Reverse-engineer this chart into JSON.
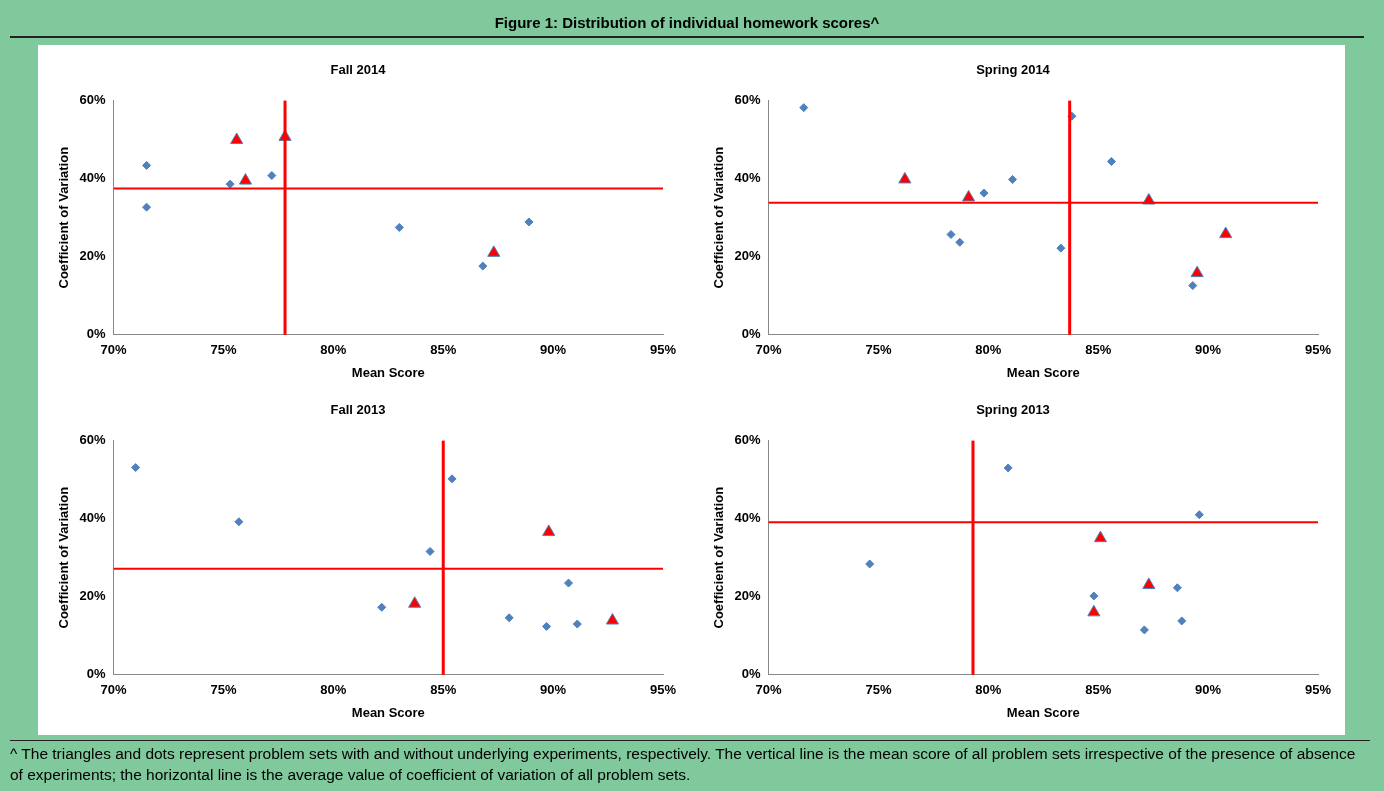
{
  "chart_data": [
    {
      "type": "scatter",
      "title": "Fall 2014",
      "xlabel": "Mean Score",
      "ylabel": "Coefficient of Variation",
      "annotations": [
        "Figure 1: Distribution of individual homework scores^",
        "^ The triangles and dots represent problem sets with and without underlying experiments, respectively. The vertical line is the mean score of all problem sets irrespective of the presence of absence of experiments; the horizontal line is the average value of coefficient of variation of all problem sets."
      ],
      "xlim": [
        70,
        95
      ],
      "ylim": [
        0,
        60
      ],
      "xticks": [
        {
          "value": 70,
          "label": "70%"
        },
        {
          "value": 75,
          "label": "75%"
        },
        {
          "value": 80,
          "label": "80%"
        },
        {
          "value": 85,
          "label": "85%"
        },
        {
          "value": 90,
          "label": "90%"
        },
        {
          "value": 95,
          "label": "95%"
        }
      ],
      "yticks": [
        {
          "value": 0,
          "label": "0%"
        },
        {
          "value": 20,
          "label": "20%"
        },
        {
          "value": 40,
          "label": "40%"
        },
        {
          "value": 60,
          "label": "60%"
        }
      ],
      "grid": false,
      "legend": false,
      "series": [
        {
          "color": "#4f81bd",
          "marker": "diamond",
          "x": [
            71.5,
            71.5,
            75.3,
            77.2,
            83.0,
            86.8,
            88.9
          ],
          "values": [
            43.4,
            32.7,
            38.6,
            40.8,
            27.5,
            17.6,
            28.9
          ]
        },
        {
          "color": "#ff0000",
          "marker": "triangle",
          "x": [
            75.6,
            76.0,
            77.8,
            87.3
          ],
          "values": [
            49.9,
            39.5,
            50.7,
            21.0
          ]
        }
      ],
      "ref_lines": [
        {
          "axis": "x",
          "value": 77.8,
          "color": "#ff0000"
        },
        {
          "axis": "y",
          "value": 37.5,
          "color": "#ff0000"
        }
      ]
    },
    {
      "type": "scatter",
      "title": "Spring 2014",
      "xlabel": "Mean Score",
      "ylabel": "Coefficient of Variation",
      "xlim": [
        70,
        95
      ],
      "ylim": [
        0,
        60
      ],
      "xticks": [
        {
          "value": 70,
          "label": "70%"
        },
        {
          "value": 75,
          "label": "75%"
        },
        {
          "value": 80,
          "label": "80%"
        },
        {
          "value": 85,
          "label": "85%"
        },
        {
          "value": 90,
          "label": "90%"
        },
        {
          "value": 95,
          "label": "95%"
        }
      ],
      "yticks": [
        {
          "value": 0,
          "label": "0%"
        },
        {
          "value": 20,
          "label": "20%"
        },
        {
          "value": 40,
          "label": "40%"
        },
        {
          "value": 60,
          "label": "60%"
        }
      ],
      "grid": false,
      "legend": false,
      "series": [
        {
          "color": "#4f81bd",
          "marker": "diamond",
          "x": [
            71.6,
            78.3,
            78.7,
            79.8,
            81.1,
            83.3,
            83.8,
            85.6,
            89.3
          ],
          "values": [
            58.2,
            25.7,
            23.7,
            36.3,
            39.8,
            22.2,
            56.0,
            44.4,
            12.6
          ]
        },
        {
          "color": "#ff0000",
          "marker": "triangle",
          "x": [
            76.2,
            79.1,
            87.3,
            89.5,
            90.8
          ],
          "values": [
            39.8,
            35.2,
            34.4,
            15.8,
            25.8
          ]
        }
      ],
      "ref_lines": [
        {
          "axis": "x",
          "value": 83.7,
          "color": "#ff0000"
        },
        {
          "axis": "y",
          "value": 33.8,
          "color": "#ff0000"
        }
      ]
    },
    {
      "type": "scatter",
      "title": "Fall 2013",
      "xlabel": "Mean Score",
      "ylabel": "Coefficient of Variation",
      "xlim": [
        70,
        95
      ],
      "ylim": [
        0,
        60
      ],
      "xticks": [
        {
          "value": 70,
          "label": "70%"
        },
        {
          "value": 75,
          "label": "75%"
        },
        {
          "value": 80,
          "label": "80%"
        },
        {
          "value": 85,
          "label": "85%"
        },
        {
          "value": 90,
          "label": "90%"
        },
        {
          "value": 95,
          "label": "95%"
        }
      ],
      "yticks": [
        {
          "value": 0,
          "label": "0%"
        },
        {
          "value": 20,
          "label": "20%"
        },
        {
          "value": 40,
          "label": "40%"
        },
        {
          "value": 60,
          "label": "60%"
        }
      ],
      "grid": false,
      "legend": false,
      "series": [
        {
          "color": "#4f81bd",
          "marker": "diamond",
          "x": [
            71.0,
            75.7,
            82.2,
            84.4,
            85.4,
            88.0,
            89.7,
            90.7,
            91.1
          ],
          "values": [
            53.1,
            39.2,
            17.3,
            31.6,
            50.2,
            14.6,
            12.4,
            23.5,
            13.0
          ]
        },
        {
          "color": "#ff0000",
          "marker": "triangle",
          "x": [
            83.7,
            89.8,
            92.7
          ],
          "values": [
            18.2,
            36.6,
            13.9
          ]
        }
      ],
      "ref_lines": [
        {
          "axis": "x",
          "value": 85.0,
          "color": "#ff0000"
        },
        {
          "axis": "y",
          "value": 27.2,
          "color": "#ff0000"
        }
      ]
    },
    {
      "type": "scatter",
      "title": "Spring 2013",
      "xlabel": "Mean Score",
      "ylabel": "Coefficient of Variation",
      "xlim": [
        70,
        95
      ],
      "ylim": [
        0,
        60
      ],
      "xticks": [
        {
          "value": 70,
          "label": "70%"
        },
        {
          "value": 75,
          "label": "75%"
        },
        {
          "value": 80,
          "label": "80%"
        },
        {
          "value": 85,
          "label": "85%"
        },
        {
          "value": 90,
          "label": "90%"
        },
        {
          "value": 95,
          "label": "95%"
        }
      ],
      "yticks": [
        {
          "value": 0,
          "label": "0%"
        },
        {
          "value": 20,
          "label": "20%"
        },
        {
          "value": 40,
          "label": "40%"
        },
        {
          "value": 60,
          "label": "60%"
        }
      ],
      "grid": false,
      "legend": false,
      "series": [
        {
          "color": "#4f81bd",
          "marker": "diamond",
          "x": [
            74.6,
            80.9,
            84.8,
            87.1,
            88.6,
            88.8,
            89.6
          ],
          "values": [
            28.4,
            53.0,
            20.2,
            11.5,
            22.3,
            13.8,
            41.0
          ]
        },
        {
          "color": "#ff0000",
          "marker": "triangle",
          "x": [
            85.1,
            84.8,
            87.3
          ],
          "values": [
            35.0,
            16.0,
            23.0
          ]
        }
      ],
      "ref_lines": [
        {
          "axis": "x",
          "value": 79.3,
          "color": "#ff0000"
        },
        {
          "axis": "y",
          "value": 39.1,
          "color": "#ff0000"
        }
      ]
    }
  ]
}
